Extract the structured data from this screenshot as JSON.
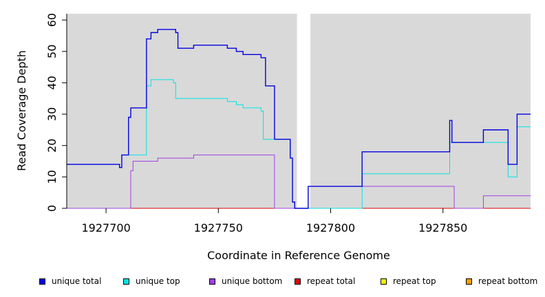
{
  "chart_data": {
    "type": "line",
    "xlabel": "Coordinate in Reference Genome",
    "ylabel": "Read Coverage Depth",
    "xlim": [
      1927682.5,
      1927889
    ],
    "ylim": [
      0,
      62
    ],
    "x_ticks": [
      1927700,
      1927750,
      1927800,
      1927850
    ],
    "y_ticks": [
      0,
      10,
      20,
      30,
      40,
      50,
      60
    ],
    "background": "#d9d9d9",
    "gap": [
      1927785,
      1927791
    ],
    "series": [
      {
        "name": "unique total",
        "color": "#0000e0",
        "points": [
          [
            1927682.5,
            14
          ],
          [
            1927689,
            14
          ],
          [
            1927706,
            13
          ],
          [
            1927707,
            17
          ],
          [
            1927710,
            29
          ],
          [
            1927711,
            32
          ],
          [
            1927718,
            54
          ],
          [
            1927720,
            56
          ],
          [
            1927723,
            57
          ],
          [
            1927731,
            56
          ],
          [
            1927732,
            51
          ],
          [
            1927739,
            52
          ],
          [
            1927754,
            51
          ],
          [
            1927758,
            50
          ],
          [
            1927761,
            49
          ],
          [
            1927769,
            48
          ],
          [
            1927771,
            39
          ],
          [
            1927775,
            22
          ],
          [
            1927782,
            16
          ],
          [
            1927783,
            2
          ],
          [
            1927784,
            0
          ],
          [
            1927790,
            7
          ],
          [
            1927814,
            18
          ],
          [
            1927853,
            28
          ],
          [
            1927854,
            21
          ],
          [
            1927868,
            25
          ],
          [
            1927879,
            14
          ],
          [
            1927883,
            30
          ],
          [
            1927889,
            30
          ]
        ]
      },
      {
        "name": "unique top",
        "color": "#00e5e5",
        "points": [
          [
            1927682.5,
            14
          ],
          [
            1927689,
            14
          ],
          [
            1927706,
            13
          ],
          [
            1927707,
            17
          ],
          [
            1927718,
            39
          ],
          [
            1927720,
            41
          ],
          [
            1927730,
            40
          ],
          [
            1927731,
            35
          ],
          [
            1927754,
            34
          ],
          [
            1927758,
            33
          ],
          [
            1927761,
            32
          ],
          [
            1927769,
            31
          ],
          [
            1927770,
            22
          ],
          [
            1927775,
            22
          ],
          [
            1927782,
            16
          ],
          [
            1927783,
            2
          ],
          [
            1927784,
            0
          ],
          [
            1927790,
            0
          ],
          [
            1927814,
            11
          ],
          [
            1927853,
            21
          ],
          [
            1927879,
            10
          ],
          [
            1927883,
            26
          ],
          [
            1927889,
            26
          ]
        ]
      },
      {
        "name": "unique bottom",
        "color": "#a040e0",
        "points": [
          [
            1927682.5,
            0
          ],
          [
            1927710,
            0
          ],
          [
            1927711,
            12
          ],
          [
            1927712,
            15
          ],
          [
            1927723,
            16
          ],
          [
            1927739,
            17
          ],
          [
            1927775,
            0
          ],
          [
            1927784,
            0
          ],
          [
            1927790,
            7
          ],
          [
            1927854,
            7
          ],
          [
            1927855,
            0
          ],
          [
            1927868,
            4
          ],
          [
            1927889,
            4
          ]
        ]
      },
      {
        "name": "repeat total",
        "color": "#e00000",
        "points": [
          [
            1927682.5,
            0
          ],
          [
            1927889,
            0
          ]
        ]
      },
      {
        "name": "repeat top",
        "color": "#f0f000",
        "points": [
          [
            1927682.5,
            0
          ],
          [
            1927889,
            0
          ]
        ]
      },
      {
        "name": "repeat bottom",
        "color": "#f5a000",
        "points": [
          [
            1927682.5,
            0
          ],
          [
            1927889,
            0
          ]
        ]
      }
    ]
  }
}
